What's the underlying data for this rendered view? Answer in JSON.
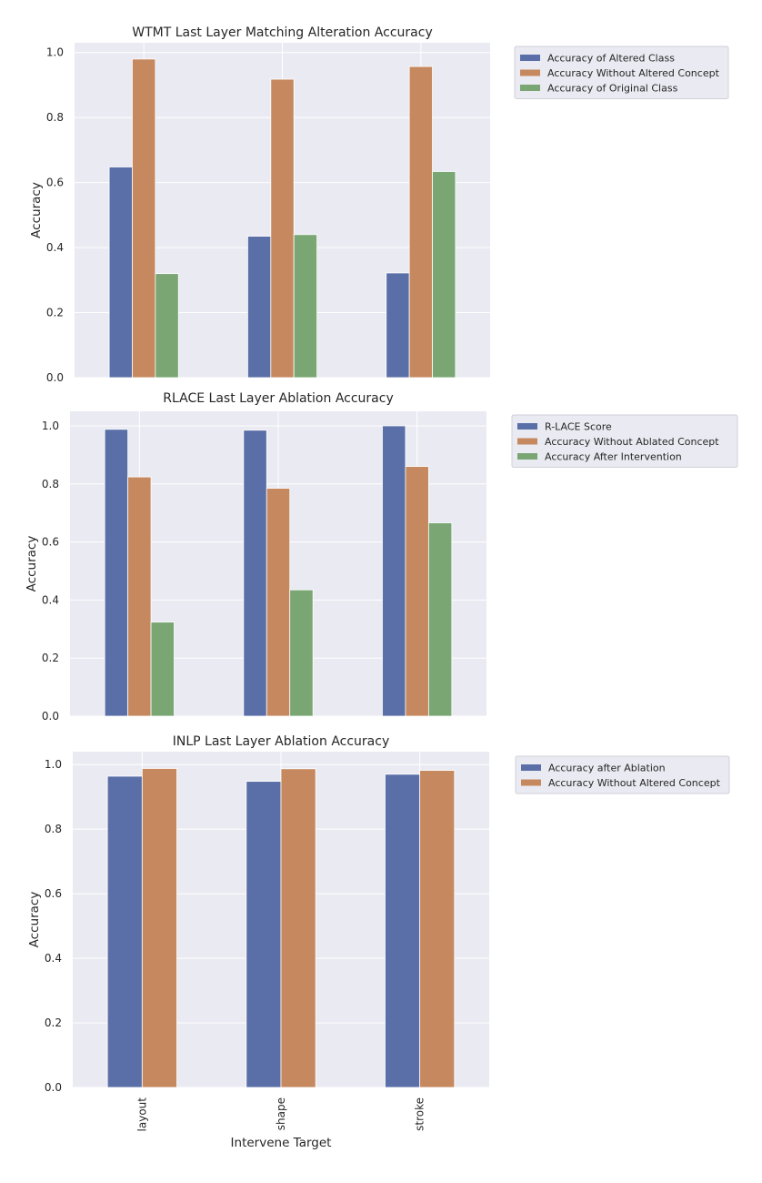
{
  "chart_data": [
    {
      "type": "bar",
      "title": "WTMT Last Layer Matching Alteration Accuracy",
      "categories": [
        "layout",
        "shape",
        "stroke"
      ],
      "xlabel": "",
      "ylabel": "Accuracy",
      "ylim": [
        0,
        1.03
      ],
      "yticks": [
        "0.0",
        "0.2",
        "0.4",
        "0.6",
        "0.8",
        "1.0"
      ],
      "grid": true,
      "legend": "outside-right",
      "series": [
        {
          "name": "Accuracy of Altered Class",
          "color": "#5a6fa8",
          "values": [
            0.648,
            0.435,
            0.322
          ]
        },
        {
          "name": "Accuracy Without Altered Concept",
          "color": "#c6895f",
          "values": [
            0.98,
            0.918,
            0.957
          ]
        },
        {
          "name": "Accuracy of Original Class",
          "color": "#79a673",
          "values": [
            0.32,
            0.44,
            0.634
          ]
        }
      ]
    },
    {
      "type": "bar",
      "title": "RLACE Last Layer Ablation Accuracy",
      "categories": [
        "layout",
        "shape",
        "stroke"
      ],
      "xlabel": "",
      "ylabel": "Accuracy",
      "ylim": [
        0,
        1.05
      ],
      "yticks": [
        "0.0",
        "0.2",
        "0.4",
        "0.6",
        "0.8",
        "1.0"
      ],
      "grid": true,
      "legend": "outside-right",
      "series": [
        {
          "name": "R-LACE Score",
          "color": "#5a6fa8",
          "values": [
            0.988,
            0.985,
            1.0
          ]
        },
        {
          "name": "Accuracy Without Ablated Concept",
          "color": "#c6895f",
          "values": [
            0.824,
            0.785,
            0.86
          ]
        },
        {
          "name": "Accuracy After Intervention",
          "color": "#79a673",
          "values": [
            0.324,
            0.435,
            0.666
          ]
        }
      ]
    },
    {
      "type": "bar",
      "title": "INLP Last Layer Ablation Accuracy",
      "categories": [
        "layout",
        "shape",
        "stroke"
      ],
      "xlabel": "Intervene Target",
      "ylabel": "Accuracy",
      "ylim": [
        0,
        1.04
      ],
      "yticks": [
        "0.0",
        "0.2",
        "0.4",
        "0.6",
        "0.8",
        "1.0"
      ],
      "grid": true,
      "legend": "outside-right",
      "series": [
        {
          "name": "Accuracy after Ablation",
          "color": "#5a6fa8",
          "values": [
            0.964,
            0.948,
            0.97
          ]
        },
        {
          "name": "Accuracy Without Altered Concept",
          "color": "#c6895f",
          "values": [
            0.988,
            0.987,
            0.982
          ]
        }
      ]
    }
  ]
}
